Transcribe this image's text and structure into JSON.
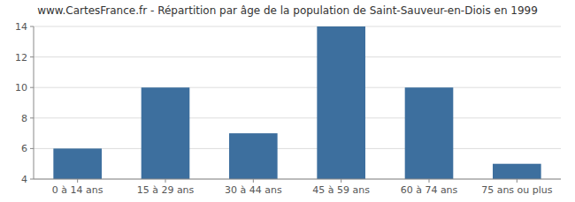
{
  "chart_data": {
    "type": "bar",
    "title": "www.CartesFrance.fr - Répartition par âge de la population de Saint-Sauveur-en-Diois en 1999",
    "categories": [
      "0 à 14 ans",
      "15 à 29 ans",
      "30 à 44 ans",
      "45 à 59 ans",
      "60 à 74 ans",
      "75 ans ou plus"
    ],
    "values": [
      6,
      10,
      7,
      14,
      10,
      5
    ],
    "color": "#3d6f9e",
    "ylim": [
      4,
      14
    ],
    "yticks": [
      4,
      6,
      8,
      10,
      12,
      14
    ],
    "grid": true
  }
}
